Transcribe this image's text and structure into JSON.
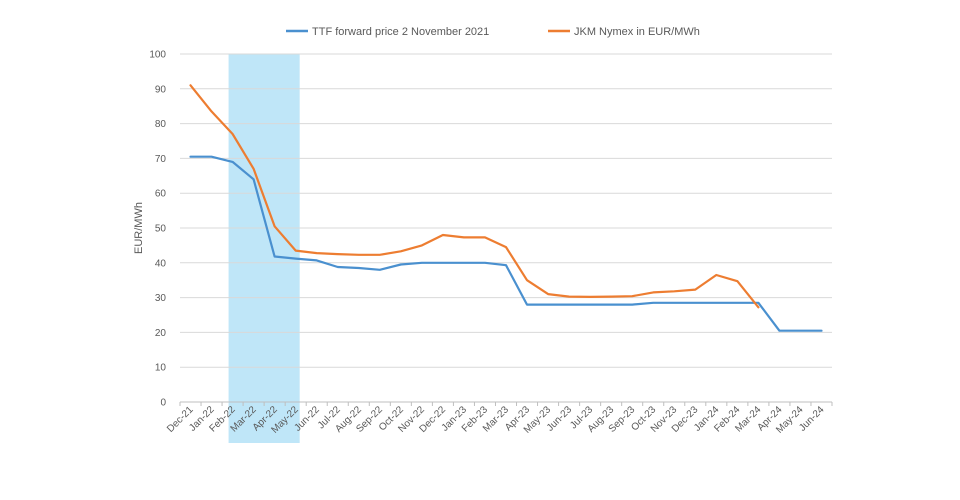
{
  "chart_data": {
    "type": "line",
    "title": "",
    "xlabel": "",
    "ylabel": "EUR/MWh",
    "ylim": [
      0,
      100
    ],
    "yticks": [
      0,
      10,
      20,
      30,
      40,
      50,
      60,
      70,
      80,
      90,
      100
    ],
    "grid": "horizontal",
    "legend_position": "top",
    "categories": [
      "Dec-21",
      "Jan-22",
      "Feb-22",
      "Mar-22",
      "Apr-22",
      "May-22",
      "Jun-22",
      "Jul-22",
      "Aug-22",
      "Sep-22",
      "Oct-22",
      "Nov-22",
      "Dec-22",
      "Jan-23",
      "Feb-23",
      "Mar-23",
      "Apr-23",
      "May-23",
      "Jun-23",
      "Jul-23",
      "Aug-23",
      "Sep-23",
      "Oct-23",
      "Nov-23",
      "Dec-23",
      "Jan-24",
      "Feb-24",
      "Mar-24",
      "Apr-24",
      "May-24",
      "Jun-24"
    ],
    "highlight_band": {
      "from": "Feb-22",
      "to": "May-22",
      "color": "#bfe6f8"
    },
    "series": [
      {
        "name": "TTF forward price 2 November 2021",
        "color": "#4a90cf",
        "values": [
          70.5,
          70.5,
          69,
          64,
          41.8,
          41.2,
          40.7,
          38.8,
          38.5,
          38,
          39.5,
          40,
          40,
          40,
          40,
          39.3,
          28,
          28,
          28,
          28,
          28,
          28,
          28.5,
          28.5,
          28.5,
          28.5,
          28.5,
          28.5,
          20.5,
          20.5,
          20.5
        ]
      },
      {
        "name": "JKM Nymex in EUR/MWh",
        "color": "#ed7d31",
        "values": [
          91,
          83.5,
          77,
          67,
          50.5,
          43.5,
          42.8,
          42.5,
          42.3,
          42.3,
          43.3,
          45,
          48,
          47.3,
          47.3,
          44.5,
          35,
          31,
          30.3,
          30.2,
          30.3,
          30.4,
          31.5,
          31.8,
          32.3,
          36.5,
          34.7,
          27.2,
          null,
          null,
          null
        ]
      }
    ]
  }
}
